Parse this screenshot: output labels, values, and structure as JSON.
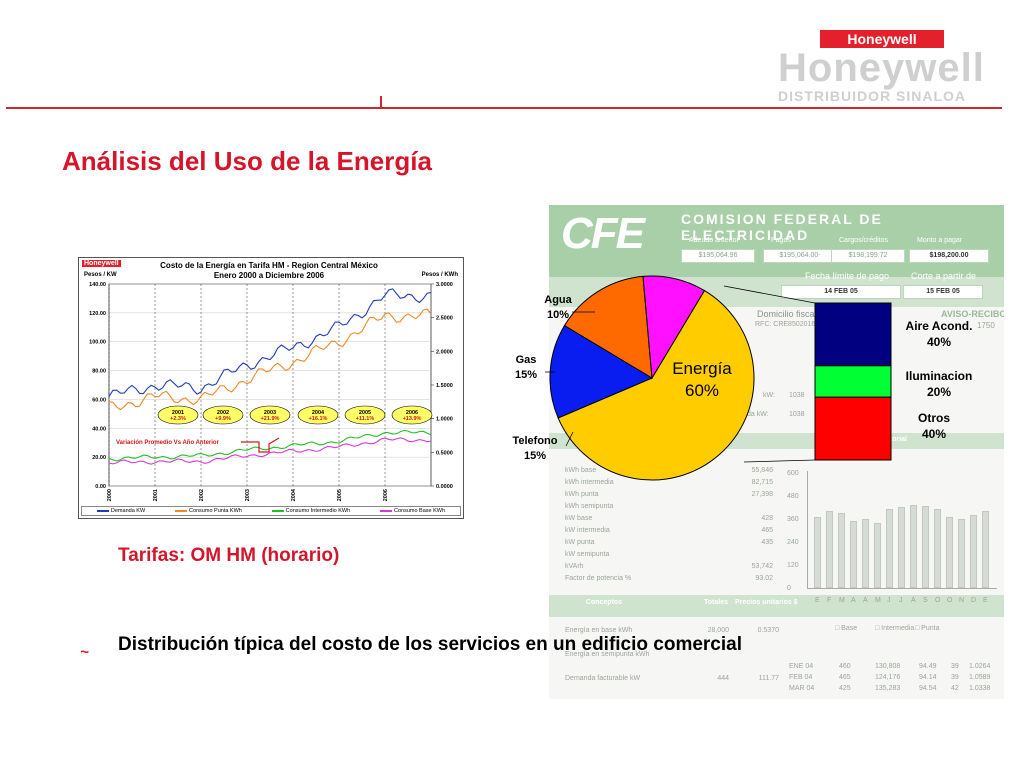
{
  "header": {
    "brand_badge": "Honeywell",
    "brand_ghost": "Honeywell",
    "brand_sub": "DISTRIBUIDOR SINALOA"
  },
  "page": {
    "title": "Análisis del Uso de la Energía",
    "tarifas": "Tarifas: OM  HM (horario)",
    "bullet_text": "Distribución típica del costo de los servicios en un edificio comercial"
  },
  "line_chart": {
    "brand": "Honeywell",
    "title_line1": "Costo de la Energía en Tarifa HM - Region Central México",
    "title_line2": "Enero 2000 a Diciembre 2006",
    "left_axis_label": "Pesos / KW",
    "right_axis_label": "Pesos / KWh",
    "note": "Variación Promedio Vs Año Anterior",
    "bubbles": [
      {
        "year": "2001",
        "pct": "+2.3%"
      },
      {
        "year": "2002",
        "pct": "+9.9%"
      },
      {
        "year": "2003",
        "pct": "+21.9%"
      },
      {
        "year": "2004",
        "pct": "+16.1%"
      },
      {
        "year": "2005",
        "pct": "+11.1%"
      },
      {
        "year": "2006",
        "pct": "+13.9%"
      }
    ],
    "legend": [
      {
        "name": "Demanda KW",
        "color": "#1f3fb8"
      },
      {
        "name": "Consumo Punta KWh",
        "color": "#f08a24"
      },
      {
        "name": "Consumo Intermedio KWh",
        "color": "#22c222"
      },
      {
        "name": "Consumo Base KWh",
        "color": "#d63ad6"
      }
    ]
  },
  "chart_data": {
    "type": "line",
    "title": "Costo de la Energía en Tarifa HM - Region Central México",
    "subtitle": "Enero 2000 a Diciembre 2006",
    "ylabel": "Pesos / KW",
    "y2label": "Pesos / KWh",
    "ylim": [
      0,
      140
    ],
    "y2lim": [
      0,
      3
    ],
    "yticks": [
      "0.00",
      "20.00",
      "40.00",
      "60.00",
      "80.00",
      "100.00",
      "120.00",
      "140.00"
    ],
    "y2ticks": [
      "0.0000",
      "0.5000",
      "1.0000",
      "1.5000",
      "2.0000",
      "2.5000",
      "3.0000"
    ],
    "x": [
      "2000",
      "2001",
      "2002",
      "2003",
      "2004",
      "2005",
      "2006"
    ],
    "series": [
      {
        "name": "Demanda KW",
        "axis": "left",
        "values": [
          62,
          70,
          68,
          84,
          96,
          110,
          132
        ]
      },
      {
        "name": "Consumo Punta KWh",
        "axis": "left",
        "values": [
          54,
          62,
          60,
          74,
          86,
          100,
          118
        ]
      },
      {
        "name": "Consumo Intermedio KWh",
        "axis": "left",
        "values": [
          19,
          20,
          21,
          25,
          28,
          31,
          37
        ]
      },
      {
        "name": "Consumo Base KWh",
        "axis": "left",
        "values": [
          16,
          17,
          17,
          21,
          24,
          27,
          32
        ]
      }
    ]
  },
  "pie_chart": {
    "type": "pie",
    "slices": [
      {
        "label": "Energía",
        "value": 60,
        "display": "60%",
        "color": "#ffcc00"
      },
      {
        "label": "Telefono",
        "value": 15,
        "display": "15%",
        "color": "#0a1df0"
      },
      {
        "label": "Gas",
        "value": 15,
        "display": "15%",
        "color": "#ff6a00"
      },
      {
        "label": "Agua",
        "value": 10,
        "display": "10%",
        "color": "#ff10ff"
      }
    ],
    "breakdown": [
      {
        "label": "Aire Acond.",
        "value": 40,
        "display": "40%",
        "color": "#000080"
      },
      {
        "label": "Iluminacion",
        "value": 20,
        "display": "20%",
        "color": "#00ff33"
      },
      {
        "label": "Otros",
        "value": 40,
        "display": "40%",
        "color": "#ff0000"
      }
    ]
  },
  "bill": {
    "logo": "CFE",
    "company": "COMISION  FEDERAL DE ELECTRICIDAD",
    "headers": [
      "Adeudo anterior",
      "Pagos",
      "Cargos/créditos",
      "Monto a pagar"
    ],
    "amounts": [
      "$195,064.96",
      "$195,064.00-",
      "$198,199.72",
      "$198,200.00"
    ],
    "due_label": "Fecha límite de pago",
    "cut_label": "Corte a partir de",
    "due_date": "14 FEB 05",
    "cut_date": "15 FEB 05",
    "domicilio": "Domicilio fiscal",
    "aviso": "AVISO-RECIBO",
    "rfc": "RFC: CRE8502016",
    "account": "1750",
    "kw_value": "1038",
    "demanda": "da kW:",
    "demanda_value": "1038",
    "reading_rows": [
      {
        "label": "kWh base",
        "value": "55,846"
      },
      {
        "label": "kWh intermedia",
        "value": "82,715"
      },
      {
        "label": "kWh punta",
        "value": "27,398"
      },
      {
        "label": "kWh semipunta",
        "value": ""
      },
      {
        "label": "kW base",
        "value": "428"
      },
      {
        "label": "kW intermedia",
        "value": "465"
      },
      {
        "label": "kW punta",
        "value": "435"
      },
      {
        "label": "kW semipunta",
        "value": ""
      },
      {
        "label": "kVArh",
        "value": "53,742"
      },
      {
        "label": "Factor de potencia %",
        "value": "93.02"
      }
    ],
    "concept_headers": [
      "Conceptos",
      "Totales",
      "Precios unitarios $"
    ],
    "concept_rows": [
      {
        "label": "Energía en base kWh",
        "total": "28,000",
        "price": "0.5370"
      },
      {
        "label": "Energía en semipunta kWh",
        "total": "",
        "price": ""
      },
      {
        "label": "Demanda facturable kW",
        "total": "444",
        "price": "111.77"
      }
    ],
    "hist_title": "Historial",
    "hist_yticks": [
      "0",
      "120",
      "240",
      "360",
      "480",
      "600"
    ],
    "hist_months": [
      "E",
      "F",
      "M",
      "A",
      "A",
      "M",
      "J",
      "J",
      "A",
      "S",
      "O",
      "O",
      "N",
      "D",
      "E"
    ],
    "hist_legend": [
      "Base",
      "Intermedia",
      "Punta"
    ],
    "hist_rows": [
      [
        "ENE 04",
        "460",
        "130,808",
        "94.49",
        "39",
        "1.0264"
      ],
      [
        "FEB 04",
        "465",
        "124,176",
        "94.14",
        "39",
        "1.0589"
      ],
      [
        "MAR 04",
        "425",
        "135,283",
        "94.54",
        "42",
        "1.0338"
      ]
    ]
  }
}
